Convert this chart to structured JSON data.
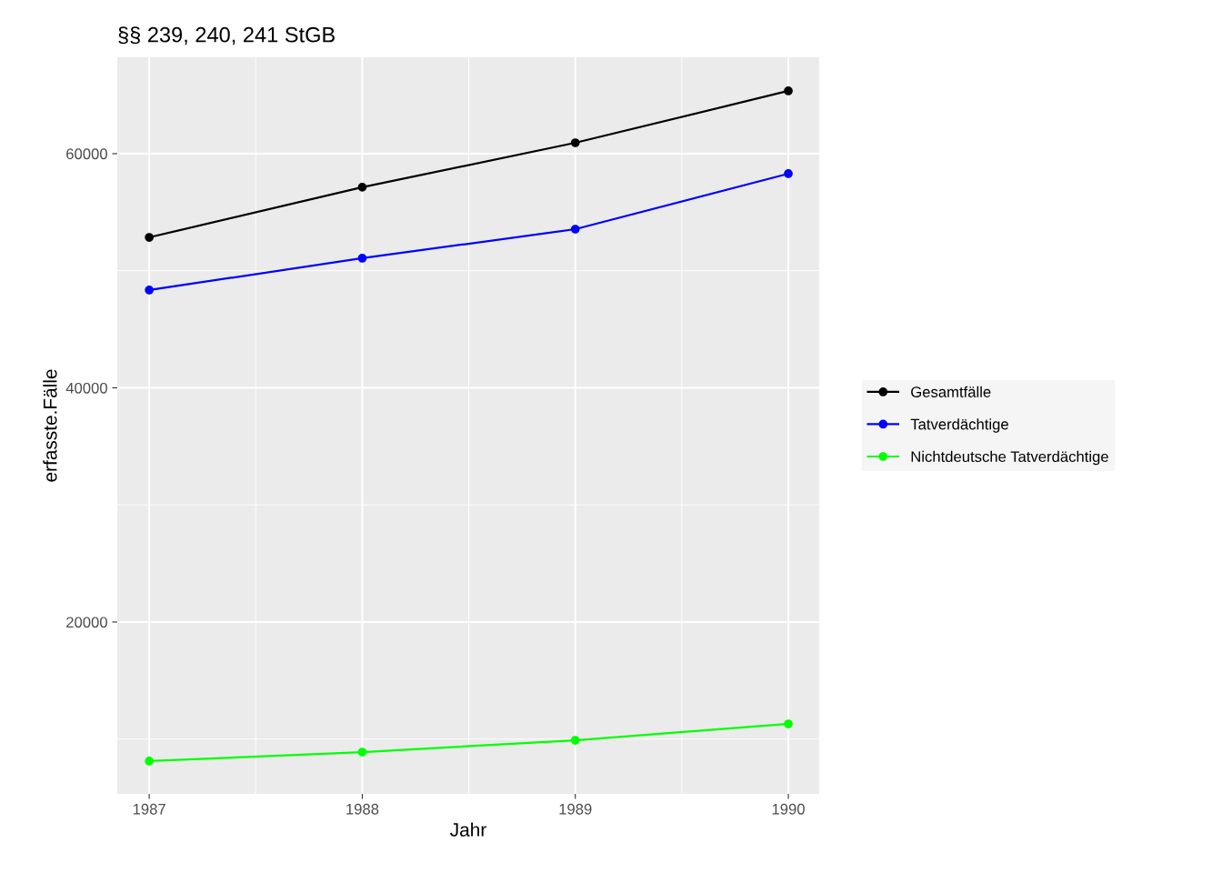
{
  "chart_data": {
    "type": "line",
    "title": "§§ 239, 240, 241 StGB",
    "xlabel": "Jahr",
    "ylabel": "erfasste.Fälle",
    "x": [
      1987,
      1988,
      1989,
      1990
    ],
    "series": [
      {
        "name": "Gesamtfälle",
        "color": "#000000",
        "values": [
          52850,
          57130,
          60930,
          65360
        ]
      },
      {
        "name": "Tatverdächtige",
        "color": "#0000ff",
        "values": [
          48350,
          51070,
          53550,
          58290
        ]
      },
      {
        "name": "Nichtdeutsche Tatverdächtige",
        "color": "#00ff00",
        "values": [
          8120,
          8890,
          9900,
          11300
        ]
      }
    ],
    "xlim": [
      1986.85,
      1990.145
    ],
    "xticks": [
      1987,
      1988,
      1989,
      1990
    ],
    "ylim": [
      5320,
      68230
    ],
    "yticks": [
      20000,
      40000,
      60000
    ],
    "grid": true,
    "legend": "right",
    "marker": "circle",
    "line_style": "solid"
  }
}
